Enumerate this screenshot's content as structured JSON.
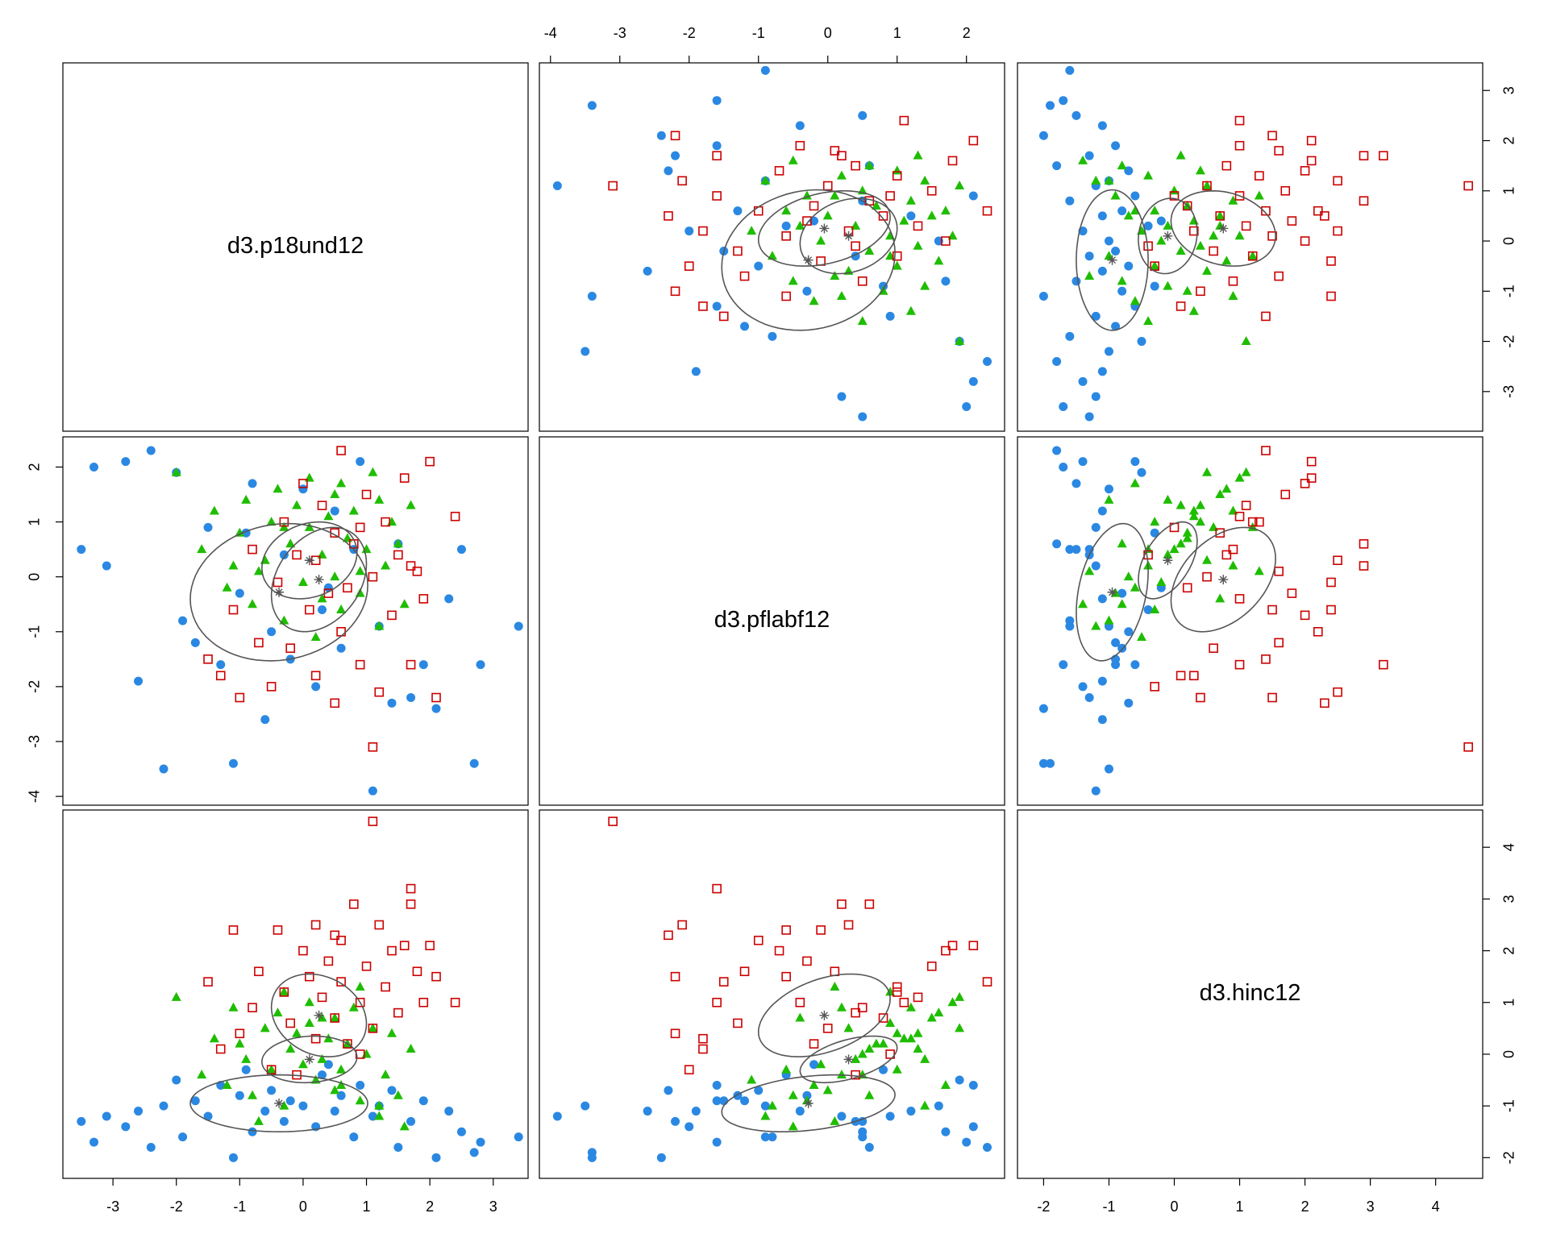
{
  "chart_data": {
    "type": "scatter-matrix",
    "variables": [
      "d3.p18und12",
      "d3.pflabf12",
      "d3.hinc12"
    ],
    "lims": [
      [
        -3.79,
        3.55
      ],
      [
        -4.16,
        2.55
      ],
      [
        -2.4,
        4.72
      ]
    ],
    "ticks": [
      [
        -3,
        -2,
        -1,
        0,
        1,
        2,
        3
      ],
      [
        -4,
        -3,
        -2,
        -1,
        0,
        1,
        2
      ],
      [
        -2,
        -1,
        0,
        1,
        2,
        3,
        4
      ]
    ],
    "series": [
      {
        "color": "#2a88e2",
        "marker": "circle",
        "mean": [
          -0.38,
          -0.28,
          -0.95
        ],
        "sd": [
          1.4,
          1.25,
          0.55
        ],
        "cor": [
          0.1,
          0.0,
          0.3
        ],
        "points": [
          [
            -3.5,
            0.5,
            -1.3
          ],
          [
            -3.3,
            2.0,
            -1.7
          ],
          [
            -3.1,
            0.2,
            -1.2
          ],
          [
            -2.8,
            2.1,
            -1.4
          ],
          [
            -2.6,
            -1.9,
            -1.1
          ],
          [
            -2.4,
            2.3,
            -1.8
          ],
          [
            -2.2,
            -3.5,
            -1.0
          ],
          [
            -2.0,
            1.9,
            -0.5
          ],
          [
            -1.9,
            -0.8,
            -1.6
          ],
          [
            -1.7,
            -1.2,
            -0.9
          ],
          [
            -1.5,
            0.9,
            -1.2
          ],
          [
            -1.3,
            -1.6,
            -0.6
          ],
          [
            -1.1,
            -3.4,
            -2.0
          ],
          [
            -1.0,
            -0.3,
            -0.8
          ],
          [
            -0.8,
            1.7,
            -1.5
          ],
          [
            -0.6,
            -2.6,
            -1.1
          ],
          [
            -0.5,
            -1.0,
            -0.7
          ],
          [
            -0.3,
            0.4,
            -1.3
          ],
          [
            -0.2,
            -1.5,
            -0.9
          ],
          [
            0.0,
            1.6,
            -1.0
          ],
          [
            0.2,
            -2.0,
            -1.4
          ],
          [
            0.3,
            -0.6,
            -0.4
          ],
          [
            0.5,
            1.2,
            -1.1
          ],
          [
            0.6,
            -1.3,
            -0.8
          ],
          [
            0.8,
            0.5,
            -1.6
          ],
          [
            0.9,
            2.1,
            -0.6
          ],
          [
            1.1,
            -3.9,
            -1.2
          ],
          [
            1.2,
            -0.9,
            -1.0
          ],
          [
            1.4,
            -2.3,
            -0.7
          ],
          [
            1.5,
            0.6,
            -1.8
          ],
          [
            1.7,
            -2.2,
            -1.3
          ],
          [
            1.9,
            -1.6,
            -0.9
          ],
          [
            2.1,
            -2.4,
            -2.0
          ],
          [
            2.3,
            -0.4,
            -1.1
          ],
          [
            2.5,
            0.5,
            -1.5
          ],
          [
            2.7,
            -3.4,
            -1.9
          ],
          [
            2.8,
            -1.6,
            -1.7
          ],
          [
            3.4,
            -0.9,
            -1.6
          ],
          [
            -0.9,
            0.8,
            -0.3
          ],
          [
            0.4,
            -0.2,
            -0.2
          ]
        ]
      },
      {
        "color": "#1fbd00",
        "marker": "triangle",
        "mean": [
          0.1,
          0.3,
          -0.1
        ],
        "sd": [
          0.75,
          0.7,
          0.45
        ],
        "cor": [
          0.2,
          0.1,
          0.5
        ],
        "points": [
          [
            -2.0,
            1.9,
            1.1
          ],
          [
            -1.6,
            0.5,
            -0.4
          ],
          [
            -1.4,
            1.2,
            0.3
          ],
          [
            -1.2,
            -0.2,
            -0.6
          ],
          [
            -1.0,
            0.8,
            0.2
          ],
          [
            -0.9,
            1.4,
            -0.1
          ],
          [
            -0.8,
            -0.5,
            -0.8
          ],
          [
            -0.6,
            0.3,
            0.5
          ],
          [
            -0.5,
            1.0,
            -0.3
          ],
          [
            -0.4,
            1.6,
            0.8
          ],
          [
            -0.3,
            -0.8,
            -1.0
          ],
          [
            -0.2,
            0.6,
            0.1
          ],
          [
            -0.1,
            1.3,
            0.4
          ],
          [
            0.0,
            -0.1,
            -0.2
          ],
          [
            0.1,
            0.9,
            0.6
          ],
          [
            0.1,
            1.8,
            1.0
          ],
          [
            0.2,
            -1.1,
            -0.5
          ],
          [
            0.3,
            0.4,
            -0.1
          ],
          [
            0.4,
            1.1,
            0.3
          ],
          [
            0.5,
            0.0,
            -0.7
          ],
          [
            0.5,
            1.5,
            0.7
          ],
          [
            0.6,
            -0.6,
            -0.3
          ],
          [
            0.7,
            0.7,
            0.2
          ],
          [
            0.8,
            1.2,
            0.9
          ],
          [
            0.9,
            -0.3,
            -0.9
          ],
          [
            1.0,
            0.5,
            0.0
          ],
          [
            1.1,
            1.9,
            0.5
          ],
          [
            1.2,
            -0.9,
            -1.2
          ],
          [
            1.3,
            0.2,
            -0.4
          ],
          [
            1.4,
            1.0,
            0.4
          ],
          [
            1.5,
            0.6,
            -0.8
          ],
          [
            1.6,
            -0.5,
            -1.4
          ],
          [
            1.7,
            1.3,
            0.1
          ],
          [
            -0.7,
            0.1,
            -1.3
          ],
          [
            -0.3,
            0.9,
            1.2
          ],
          [
            0.3,
            -0.4,
            0.7
          ],
          [
            0.6,
            1.7,
            -0.6
          ],
          [
            -1.1,
            0.2,
            0.9
          ],
          [
            0.9,
            0.1,
            1.3
          ],
          [
            1.2,
            1.4,
            -1.0
          ]
        ]
      },
      {
        "color": "#cc0000",
        "marker": "square",
        "mean": [
          0.25,
          -0.05,
          0.75
        ],
        "sd": [
          0.75,
          0.95,
          0.8
        ],
        "cor": [
          0.3,
          -0.2,
          0.4
        ],
        "points": [
          [
            -1.5,
            -1.5,
            1.4
          ],
          [
            -1.3,
            -1.8,
            0.1
          ],
          [
            -1.1,
            -0.6,
            2.4
          ],
          [
            -1.0,
            -2.2,
            0.4
          ],
          [
            -0.8,
            0.5,
            0.9
          ],
          [
            -0.7,
            -1.2,
            1.6
          ],
          [
            -0.5,
            -2.0,
            -0.3
          ],
          [
            -0.4,
            -0.1,
            2.4
          ],
          [
            -0.3,
            1.0,
            1.2
          ],
          [
            -0.2,
            -1.3,
            0.6
          ],
          [
            0.0,
            1.7,
            2.0
          ],
          [
            0.1,
            -0.6,
            1.5
          ],
          [
            0.2,
            0.3,
            2.5
          ],
          [
            0.2,
            -1.8,
            0.3
          ],
          [
            0.3,
            1.3,
            1.1
          ],
          [
            0.4,
            -0.3,
            1.8
          ],
          [
            0.5,
            0.8,
            0.7
          ],
          [
            0.6,
            -1.0,
            2.2
          ],
          [
            0.6,
            2.3,
            1.4
          ],
          [
            0.7,
            -0.2,
            0.2
          ],
          [
            0.8,
            0.6,
            2.9
          ],
          [
            0.9,
            -1.6,
            1.0
          ],
          [
            1.0,
            1.5,
            1.7
          ],
          [
            1.1,
            -3.1,
            4.5
          ],
          [
            1.1,
            0.0,
            0.5
          ],
          [
            1.2,
            -2.1,
            2.5
          ],
          [
            1.3,
            1.0,
            1.3
          ],
          [
            1.4,
            -0.7,
            2.0
          ],
          [
            1.5,
            0.4,
            0.8
          ],
          [
            1.6,
            1.8,
            2.1
          ],
          [
            1.7,
            -1.6,
            3.2
          ],
          [
            1.8,
            0.1,
            1.6
          ],
          [
            1.9,
            -0.4,
            1.0
          ],
          [
            2.0,
            2.1,
            2.1
          ],
          [
            2.1,
            -2.2,
            1.5
          ],
          [
            2.4,
            1.1,
            1.0
          ],
          [
            -0.1,
            0.4,
            -0.4
          ],
          [
            0.9,
            0.9,
            0.0
          ],
          [
            1.7,
            0.2,
            2.9
          ],
          [
            0.5,
            -2.3,
            2.3
          ]
        ]
      }
    ]
  }
}
